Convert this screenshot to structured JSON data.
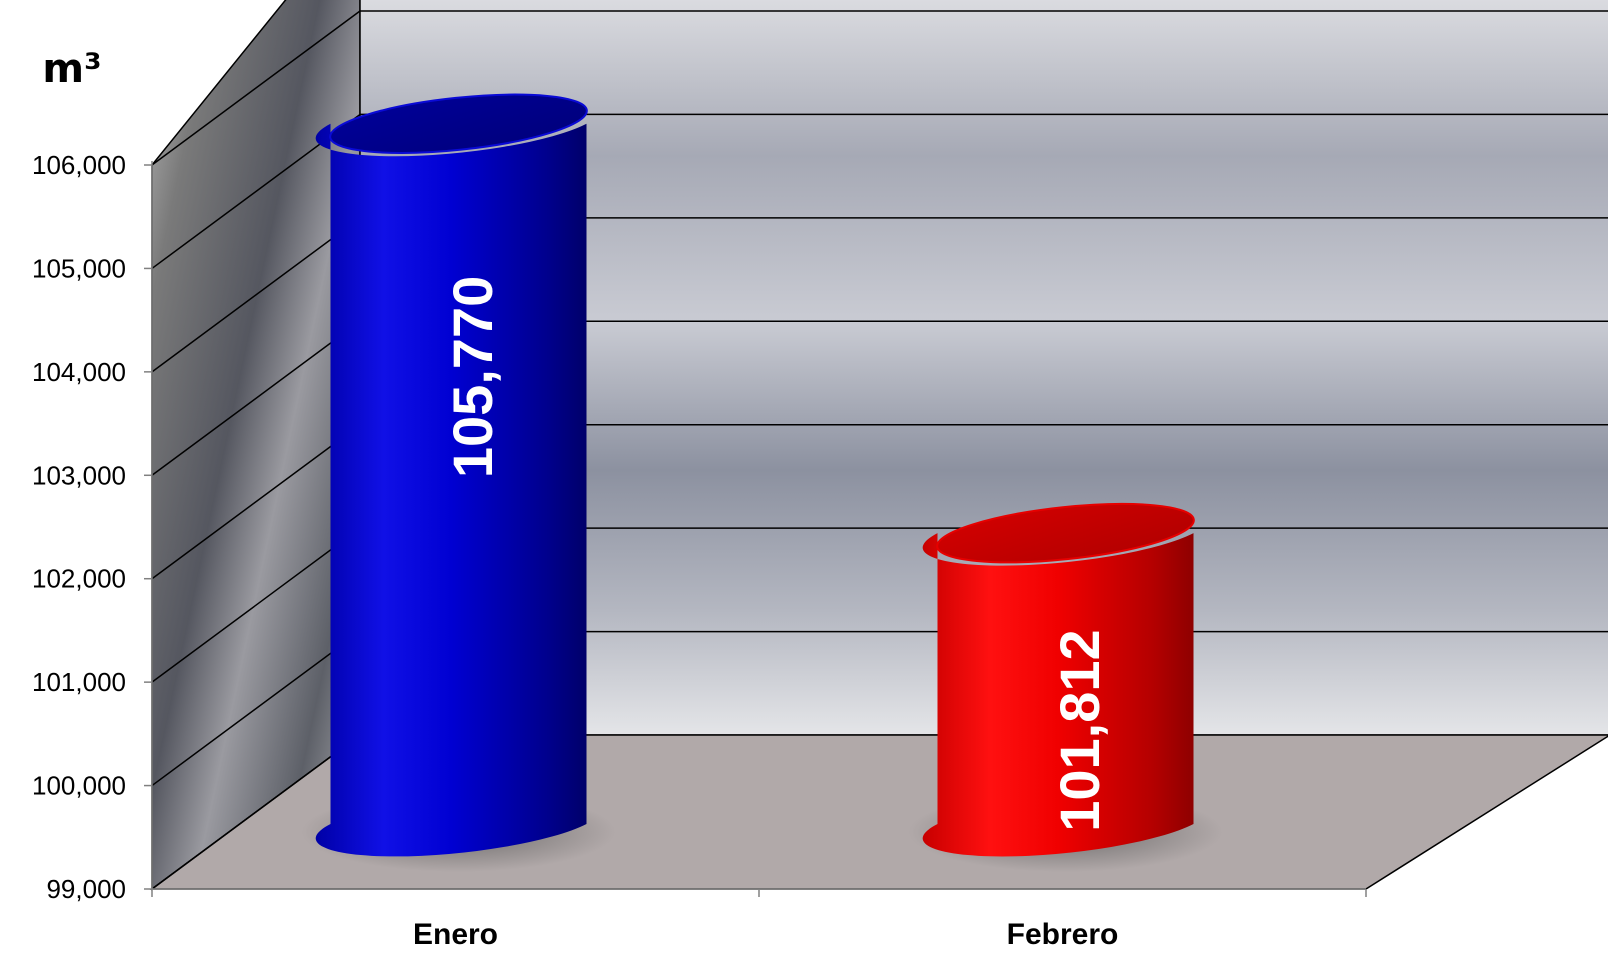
{
  "chart_data": {
    "type": "bar",
    "style": "3d-cylinder",
    "ylabel": "m³",
    "categories": [
      "Enero",
      "Febrero"
    ],
    "values": [
      105770,
      101812
    ],
    "value_labels": [
      "105,770",
      "101,812"
    ],
    "colors": [
      "#0a0ad6",
      "#e60000"
    ],
    "ylim": [
      99000,
      106000
    ],
    "yticks": [
      {
        "value": 99000,
        "label": "99,000"
      },
      {
        "value": 100000,
        "label": "100,000"
      },
      {
        "value": 101000,
        "label": "101,000"
      },
      {
        "value": 102000,
        "label": "102,000"
      },
      {
        "value": 103000,
        "label": "103,000"
      },
      {
        "value": 104000,
        "label": "104,000"
      },
      {
        "value": 105000,
        "label": "105,000"
      },
      {
        "value": 106000,
        "label": "106,000"
      }
    ],
    "grid": true,
    "legend": "none"
  }
}
